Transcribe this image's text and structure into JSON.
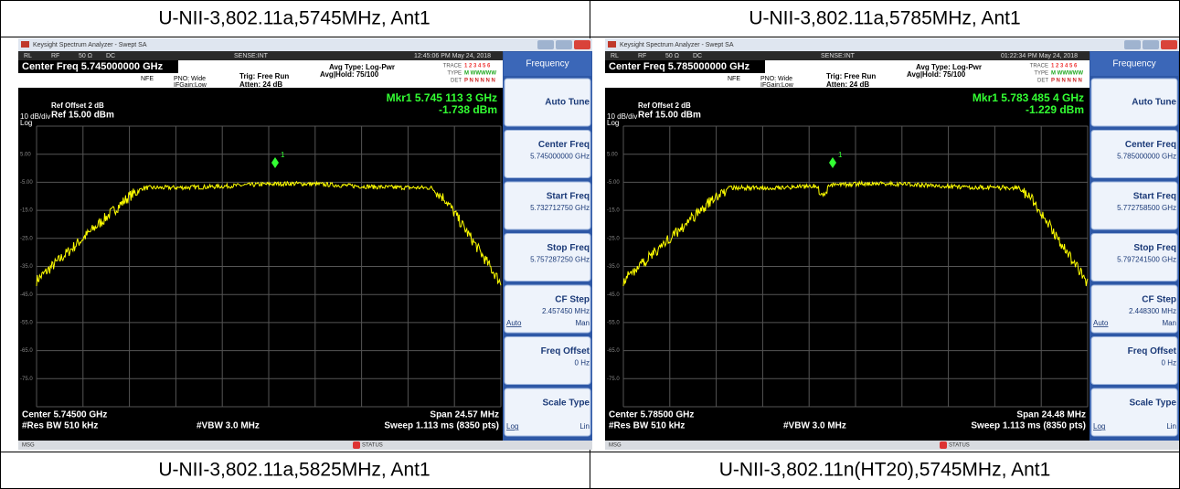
{
  "cells": [
    {
      "caption": "U-NII-3,802.11a,5745MHz, Ant1"
    },
    {
      "caption": "U-NII-3,802.11a,5785MHz, Ant1"
    },
    {
      "caption": "U-NII-3,802.11a,5825MHz, Ant1"
    },
    {
      "caption": "U-NII-3,802.11n(HT20),5745MHz, Ant1"
    }
  ],
  "screens": [
    {
      "window_title": "Keysight Spectrum Analyzer - Swept SA",
      "status_row": [
        "RL",
        "RF",
        "50 Ω",
        "DC",
        "SENSE:INT"
      ],
      "time": "12:45:06 PM May 24, 2018",
      "center_freq": "Center Freq 5.745000000 GHz",
      "nfe": "NFE",
      "pno": "PNO: Wide",
      "ifgain": "IFGain:Low",
      "trig": "Trig: Free Run",
      "atten": "Atten: 24 dB",
      "avg_type": "Avg Type: Log-Pwr",
      "avg_hold": "Avg|Hold: 75/100",
      "trace_labels": [
        "TRACE",
        "TYPE",
        "DET"
      ],
      "trace_values": [
        "1 2 3 4 5 6",
        "M WWWWW",
        "P N N N N N"
      ],
      "ref_offset": "Ref Offset 2 dB",
      "ref_level": "Ref 15.00 dBm",
      "scale": "10 dB/div",
      "log": "Log",
      "marker_freq": "Mkr1 5.745 113 3 GHz",
      "marker_level": "-1.738 dBm",
      "marker_id": "1",
      "y_labels": [
        "5.00",
        "-5.00",
        "-15.0",
        "-25.0",
        "-35.0",
        "-45.0",
        "-55.0",
        "-65.0",
        "-75.0"
      ],
      "center": "Center 5.74500 GHz",
      "span": "Span 24.57 MHz",
      "rbw": "#Res BW 510 kHz",
      "vbw": "#VBW 3.0 MHz",
      "sweep": "Sweep 1.113 ms (8350 pts)",
      "msg": "MSG",
      "status": "STATUS",
      "menu_title": "Frequency",
      "softkeys": [
        {
          "label": "Auto Tune"
        },
        {
          "label": "Center Freq",
          "value": "5.745000000 GHz"
        },
        {
          "label": "Start Freq",
          "value": "5.732712750 GHz"
        },
        {
          "label": "Stop Freq",
          "value": "5.757287250 GHz"
        },
        {
          "label": "CF Step",
          "value": "2.457450 MHz",
          "options": [
            "Auto",
            "Man"
          ]
        },
        {
          "label": "Freq Offset",
          "value": "0 Hz"
        },
        {
          "label": "Scale Type",
          "options": [
            "Log",
            "Lin"
          ]
        }
      ]
    },
    {
      "window_title": "Keysight Spectrum Analyzer - Swept SA",
      "status_row": [
        "RL",
        "RF",
        "50 Ω",
        "DC",
        "SENSE:INT"
      ],
      "time": "01:22:34 PM May 24, 2018",
      "center_freq": "Center Freq 5.785000000 GHz",
      "nfe": "NFE",
      "pno": "PNO: Wide",
      "ifgain": "IFGain:Low",
      "trig": "Trig: Free Run",
      "atten": "Atten: 24 dB",
      "avg_type": "Avg Type: Log-Pwr",
      "avg_hold": "Avg|Hold: 75/100",
      "trace_labels": [
        "TRACE",
        "TYPE",
        "DET"
      ],
      "trace_values": [
        "1 2 3 4 5 6",
        "M WWWWW",
        "P N N N N N"
      ],
      "ref_offset": "Ref Offset 2 dB",
      "ref_level": "Ref 15.00 dBm",
      "scale": "10 dB/div",
      "log": "Log",
      "marker_freq": "Mkr1 5.783 485 4 GHz",
      "marker_level": "-1.229 dBm",
      "marker_id": "1",
      "y_labels": [
        "5.00",
        "-5.00",
        "-15.0",
        "-25.0",
        "-35.0",
        "-45.0",
        "-55.0",
        "-65.0",
        "-75.0"
      ],
      "center": "Center 5.78500 GHz",
      "span": "Span 24.48 MHz",
      "rbw": "#Res BW 510 kHz",
      "vbw": "#VBW 3.0 MHz",
      "sweep": "Sweep 1.113 ms (8350 pts)",
      "msg": "MSG",
      "status": "STATUS",
      "menu_title": "Frequency",
      "softkeys": [
        {
          "label": "Auto Tune"
        },
        {
          "label": "Center Freq",
          "value": "5.785000000 GHz"
        },
        {
          "label": "Start Freq",
          "value": "5.772758500 GHz"
        },
        {
          "label": "Stop Freq",
          "value": "5.797241500 GHz"
        },
        {
          "label": "CF Step",
          "value": "2.448300 MHz",
          "options": [
            "Auto",
            "Man"
          ]
        },
        {
          "label": "Freq Offset",
          "value": "0 Hz"
        },
        {
          "label": "Scale Type",
          "options": [
            "Log",
            "Lin"
          ]
        }
      ]
    }
  ]
}
